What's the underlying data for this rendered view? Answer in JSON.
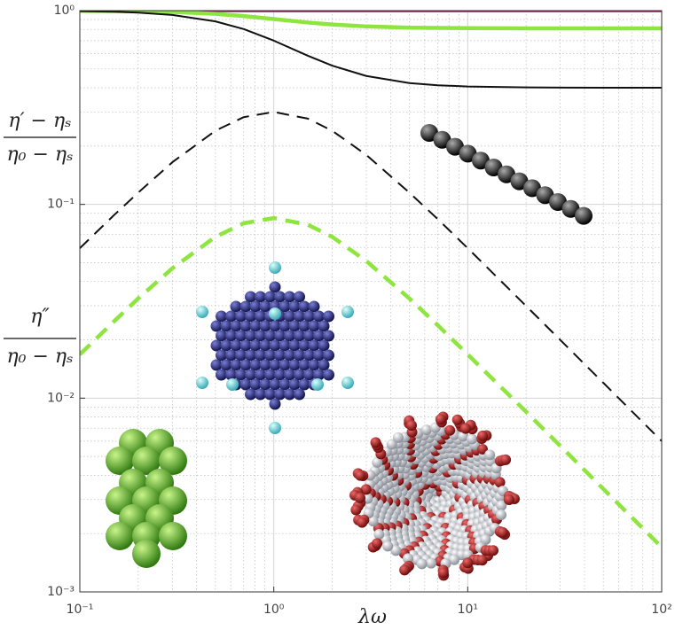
{
  "chart_data": {
    "type": "line",
    "x_label": "λω",
    "y_label_upper": {
      "numerator": "η′ − ηₛ",
      "denominator": "η₀ − ηₛ"
    },
    "y_label_lower": {
      "numerator": "η″",
      "denominator": "η₀ − ηₛ"
    },
    "x": [
      0.1,
      0.15,
      0.2,
      0.3,
      0.5,
      0.7,
      1,
      1.5,
      2,
      3,
      5,
      7,
      10,
      20,
      50,
      100
    ],
    "series": [
      {
        "color": "#9c1a6a",
        "style": "solid",
        "width": 3.5,
        "values": [
          1,
          1,
          1,
          1,
          1,
          1,
          1,
          1,
          1,
          1,
          1,
          1,
          1,
          1,
          1,
          1
        ]
      },
      {
        "color": "#8ee53f",
        "style": "solid",
        "width": 4.5,
        "values": [
          0.998,
          0.996,
          0.993,
          0.984,
          0.962,
          0.937,
          0.905,
          0.868,
          0.848,
          0.829,
          0.817,
          0.814,
          0.812,
          0.81,
          0.81,
          0.81
        ]
      },
      {
        "color": "#111111",
        "style": "solid",
        "width": 2,
        "values": [
          0.994,
          0.987,
          0.977,
          0.95,
          0.88,
          0.803,
          0.7,
          0.585,
          0.52,
          0.46,
          0.423,
          0.412,
          0.406,
          0.4015,
          0.4,
          0.4
        ]
      },
      {
        "color": "#111111",
        "style": "dashed",
        "width": 2,
        "values": [
          0.0594,
          0.088,
          0.115,
          0.165,
          0.24,
          0.282,
          0.3,
          0.277,
          0.24,
          0.18,
          0.115,
          0.084,
          0.0594,
          0.0299,
          0.012,
          0.006
        ]
      },
      {
        "color": "#8ee53f",
        "style": "dashed",
        "width": 4.5,
        "values": [
          0.0168,
          0.0249,
          0.0327,
          0.0468,
          0.068,
          0.0799,
          0.085,
          0.0785,
          0.068,
          0.051,
          0.0327,
          0.0238,
          0.0168,
          0.0085,
          0.0034,
          0.0017
        ]
      }
    ],
    "xscale": "log",
    "yscale": "log",
    "xlim": [
      0.1,
      100
    ],
    "ylim": [
      0.001,
      1
    ],
    "xticks": [
      {
        "value": 0.1,
        "label": "10⁻¹"
      },
      {
        "value": 1,
        "label": "10⁰"
      },
      {
        "value": 10,
        "label": "10¹"
      },
      {
        "value": 100,
        "label": "10²"
      }
    ],
    "yticks": [
      {
        "value": 0.001,
        "label": "10⁻³"
      },
      {
        "value": 0.01,
        "label": "10⁻²"
      },
      {
        "value": 0.1,
        "label": "10⁻¹"
      },
      {
        "value": 1,
        "label": "10⁰"
      }
    ],
    "grid": true,
    "minor_grid": true
  }
}
